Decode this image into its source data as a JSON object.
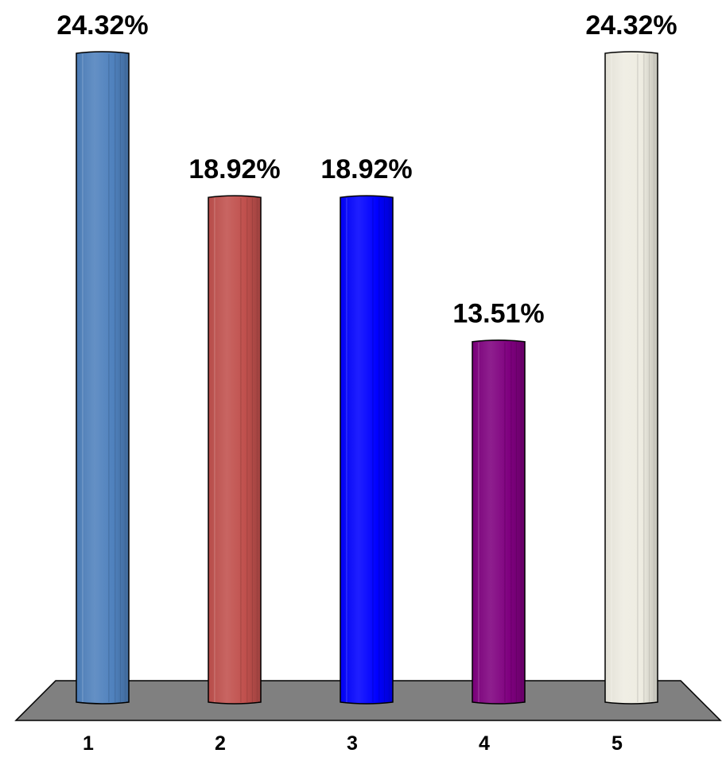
{
  "chart_data": {
    "type": "bar",
    "style": "3d-cylinder",
    "categories": [
      "1",
      "2",
      "3",
      "4",
      "5"
    ],
    "values": [
      24.32,
      18.92,
      18.92,
      13.51,
      24.32
    ],
    "data_labels": [
      "24.32%",
      "18.92%",
      "18.92%",
      "13.51%",
      "24.32%"
    ],
    "value_unit": "%",
    "ylim": [
      0,
      24.32
    ],
    "grid": false,
    "legend": "none",
    "colors": [
      "#4F81BD",
      "#C0504D",
      "#0000FF",
      "#7F007F",
      "#EEECE1"
    ],
    "floor_color": "#808080"
  }
}
